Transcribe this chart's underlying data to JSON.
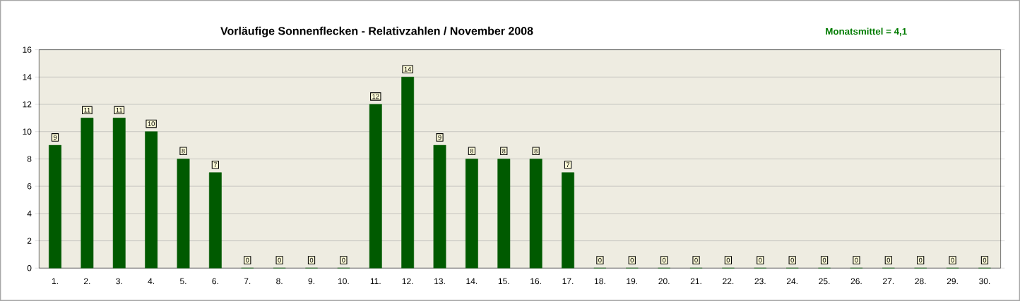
{
  "chart_data": {
    "type": "bar",
    "title": "Vorläufige Sonnenflecken - Relativzahlen  /   November 2008",
    "annotations": [
      "Monatsmittel = 4,1"
    ],
    "categories": [
      "1.",
      "2.",
      "3.",
      "4.",
      "5.",
      "6.",
      "7.",
      "8.",
      "9.",
      "10.",
      "11.",
      "12.",
      "13.",
      "14.",
      "15.",
      "16.",
      "17.",
      "18.",
      "19.",
      "20.",
      "21.",
      "22.",
      "23.",
      "24.",
      "25.",
      "26.",
      "27.",
      "28.",
      "29.",
      "30."
    ],
    "values": [
      9,
      11,
      11,
      10,
      8,
      7,
      0,
      0,
      0,
      0,
      12,
      14,
      9,
      8,
      8,
      8,
      7,
      0,
      0,
      0,
      0,
      0,
      0,
      0,
      0,
      0,
      0,
      0,
      0,
      0
    ],
    "color": "#005a00",
    "ylim": [
      0,
      16
    ],
    "yticks": [
      0,
      2,
      4,
      6,
      8,
      10,
      12,
      14,
      16
    ],
    "grid": "y",
    "data_labels": true
  }
}
